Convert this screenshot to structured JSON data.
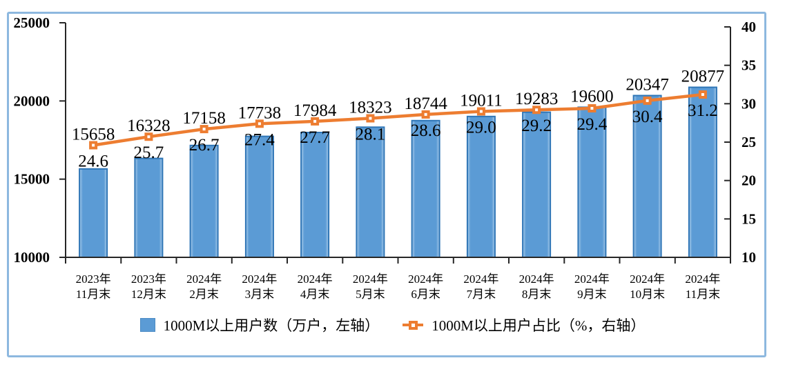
{
  "legend": {
    "items": [
      {
        "label": "1000M以上用户数（万户，左轴）",
        "marker": "bar-swatch",
        "color": "#5B9BD5"
      },
      {
        "label": "1000M以上用户占比（%，右轴）",
        "marker": "line-square-marker",
        "color": "#ED7D31"
      }
    ]
  },
  "colors": {
    "bar_fill": "#5B9BD5",
    "bar_fill_edge": "#A9CCEA",
    "bar_border": "#2E75B6",
    "line": "#ED7D31",
    "axis": "#262626",
    "label_text": "#000000",
    "frame_border": "#8DB8DF"
  },
  "chart_data": {
    "type": "bar",
    "subtype": "combo-bar-line-dual-axis",
    "categories": [
      [
        "2023年",
        "11月末"
      ],
      [
        "2023年",
        "12月末"
      ],
      [
        "2024年",
        "2月末"
      ],
      [
        "2024年",
        "3月末"
      ],
      [
        "2024年",
        "4月末"
      ],
      [
        "2024年",
        "5月末"
      ],
      [
        "2024年",
        "6月末"
      ],
      [
        "2024年",
        "7月末"
      ],
      [
        "2024年",
        "8月末"
      ],
      [
        "2024年",
        "9月末"
      ],
      [
        "2024年",
        "10月末"
      ],
      [
        "2024年",
        "11月末"
      ]
    ],
    "series": [
      {
        "name": "1000M以上用户数（万户，左轴）",
        "type": "bar",
        "axis": "left",
        "values": [
          15658,
          16328,
          17158,
          17738,
          17984,
          18323,
          18744,
          19011,
          19283,
          19600,
          20347,
          20877
        ],
        "labels": [
          "15658",
          "16328",
          "17158",
          "17738",
          "17984",
          "18323",
          "18744",
          "19011",
          "19283",
          "19600",
          "20347",
          "20877"
        ]
      },
      {
        "name": "1000M以上用户占比（%，右轴）",
        "type": "line",
        "axis": "right",
        "values": [
          24.6,
          25.7,
          26.7,
          27.4,
          27.7,
          28.1,
          28.6,
          29.0,
          29.2,
          29.4,
          30.4,
          31.2
        ],
        "labels": [
          "24.6",
          "25.7",
          "26.7",
          "27.4",
          "27.7",
          "28.1",
          "28.6",
          "29.0",
          "29.2",
          "29.4",
          "30.4",
          "31.2"
        ]
      }
    ],
    "left_axis": {
      "min": 10000,
      "max": 25000,
      "ticks": [
        10000,
        15000,
        20000,
        25000
      ],
      "tick_labels": [
        "10000",
        "15000",
        "20000",
        "25000"
      ]
    },
    "right_axis": {
      "min": 10,
      "max": 40,
      "ticks": [
        10,
        15,
        20,
        25,
        30,
        35,
        40
      ],
      "tick_labels": [
        "10",
        "15",
        "20",
        "25",
        "30",
        "35",
        "40"
      ]
    },
    "grid": false,
    "legend_position": "bottom",
    "title": ""
  }
}
